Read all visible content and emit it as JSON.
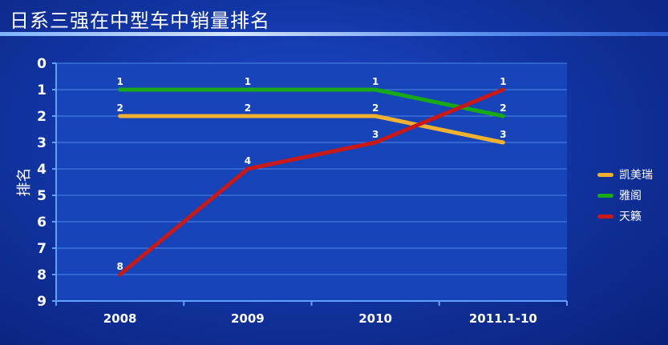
{
  "title": "日系三强在中型车中销量排名",
  "chart_data": {
    "type": "line",
    "title": "日系三强在中型车中销量排名",
    "ylabel": "排名",
    "xlabel": "",
    "categories": [
      "2008",
      "2009",
      "2010",
      "2011.1-10"
    ],
    "ylim": [
      0,
      9
    ],
    "y_inverted": true,
    "yticks": [
      "0",
      "1",
      "2",
      "3",
      "4",
      "5",
      "6",
      "7",
      "8",
      "9"
    ],
    "grid": true,
    "legend_position": "right",
    "series": [
      {
        "name": "凯美瑞",
        "values": [
          2,
          2,
          2,
          3
        ],
        "labels": [
          "2",
          "2",
          "2",
          "3"
        ],
        "color": "#f0b030"
      },
      {
        "name": "雅阁",
        "values": [
          1,
          1,
          1,
          2
        ],
        "labels": [
          "1",
          "1",
          "1",
          "2"
        ],
        "color": "#18a818"
      },
      {
        "name": "天籁",
        "values": [
          8,
          4,
          3,
          1
        ],
        "labels": [
          "8",
          "4",
          "3",
          "1"
        ],
        "color": "#c81818"
      }
    ]
  }
}
